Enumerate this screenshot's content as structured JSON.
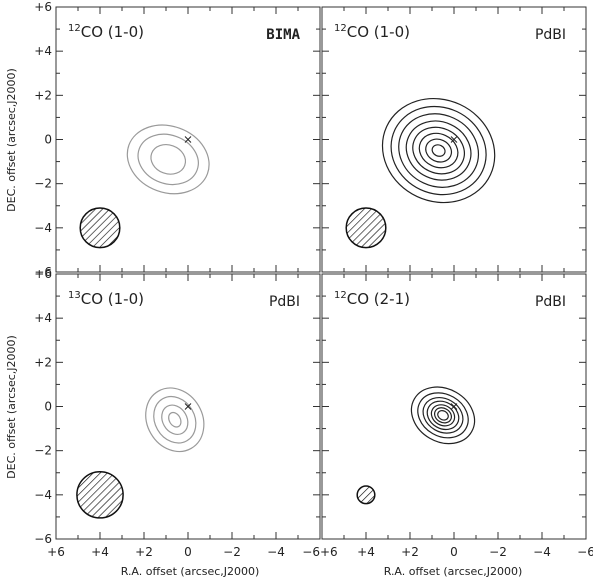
{
  "chart_data": [
    {
      "type": "contour",
      "line_label": "CO (1-0)",
      "isotope": "12",
      "telescope": "BIMA",
      "telescope_style": "bold",
      "contour_color": "#9a9a9a",
      "contour_center": [
        0.9,
        -0.9
      ],
      "contour_radii": [
        [
          1.9,
          1.5
        ],
        [
          1.4,
          1.1
        ],
        [
          0.8,
          0.65
        ]
      ],
      "contour_rotation": 20,
      "marker": [
        0.0,
        0.0
      ],
      "beam": {
        "center": [
          4.0,
          -4.0
        ],
        "radius": 0.9
      },
      "xlim": [
        6,
        -6
      ],
      "ylim": [
        -6,
        6
      ]
    },
    {
      "type": "contour",
      "line_label": "CO (1-0)",
      "isotope": "12",
      "telescope": "PdBI",
      "telescope_style": "normal",
      "contour_color": "#222222",
      "contour_center": [
        0.7,
        -0.5
      ],
      "contour_radii": [
        [
          2.6,
          2.3
        ],
        [
          2.2,
          1.95
        ],
        [
          1.85,
          1.62
        ],
        [
          1.5,
          1.3
        ],
        [
          1.2,
          1.02
        ],
        [
          0.9,
          0.75
        ],
        [
          0.6,
          0.5
        ],
        [
          0.3,
          0.25
        ]
      ],
      "contour_rotation": 25,
      "marker": [
        0.0,
        0.0
      ],
      "beam": {
        "center": [
          4.0,
          -4.0
        ],
        "radius": 0.9
      },
      "xlim": [
        6,
        -6
      ],
      "ylim": [
        -6,
        6
      ]
    },
    {
      "type": "contour",
      "line_label": "CO (1-0)",
      "isotope": "13",
      "telescope": "PdBI",
      "telescope_style": "normal",
      "contour_color": "#9a9a9a",
      "contour_center": [
        0.6,
        -0.6
      ],
      "contour_radii": [
        [
          1.5,
          1.25
        ],
        [
          1.1,
          0.9
        ],
        [
          0.7,
          0.55
        ],
        [
          0.35,
          0.25
        ]
      ],
      "contour_rotation": 60,
      "marker": [
        0.0,
        0.0
      ],
      "beam": {
        "center": [
          4.0,
          -4.0
        ],
        "radius": 1.05
      },
      "xlim": [
        6,
        -6
      ],
      "ylim": [
        -6,
        6
      ]
    },
    {
      "type": "contour",
      "line_label": "CO (2-1)",
      "isotope": "12",
      "telescope": "PdBI",
      "telescope_style": "normal",
      "contour_color": "#222222",
      "contour_center": [
        0.5,
        -0.4
      ],
      "contour_radii": [
        [
          1.5,
          1.2
        ],
        [
          1.2,
          0.95
        ],
        [
          0.95,
          0.75
        ],
        [
          0.75,
          0.6
        ],
        [
          0.55,
          0.45
        ],
        [
          0.4,
          0.32
        ],
        [
          0.25,
          0.2
        ]
      ],
      "contour_rotation": 30,
      "marker": [
        0.0,
        0.0
      ],
      "beam": {
        "center": [
          4.0,
          -4.0
        ],
        "radius": 0.4
      },
      "xlim": [
        6,
        -6
      ],
      "ylim": [
        -6,
        6
      ]
    }
  ],
  "axes": {
    "xlabel": "R.A. offset (arcsec,J2000)",
    "ylabel": "DEC. offset (arcsec,J2000)",
    "ticks": [
      6,
      4,
      2,
      0,
      -2,
      -4,
      -6
    ],
    "tick_labels": [
      "+6",
      "+4",
      "+2",
      "0",
      "−2",
      "−4",
      "−6"
    ],
    "grid": false
  }
}
